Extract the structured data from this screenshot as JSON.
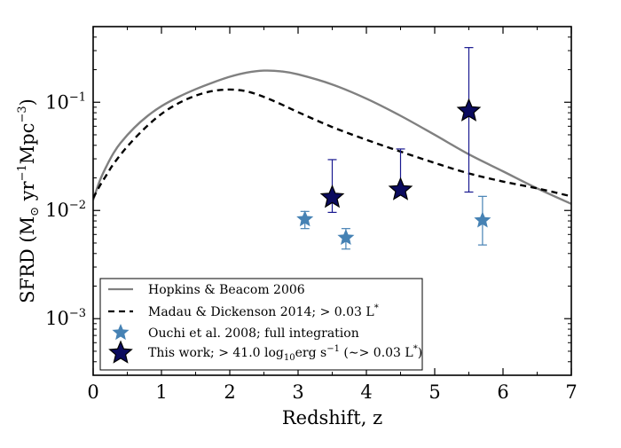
{
  "chart_data": {
    "type": "line",
    "title": "",
    "xlabel": "Redshift, z",
    "ylabel": "SFRD (M⊙ yr⁻¹Mpc⁻³)",
    "ylabel_parts": {
      "prefix": "SFRD (M",
      "sun": "⊙",
      "yr": " yr",
      "exp1": "−1",
      "mpc": "Mpc",
      "exp2": "−3",
      "suffix": ")"
    },
    "xlim": [
      0,
      7
    ],
    "ylim": [
      0.0003,
      0.5
    ],
    "yscale": "log",
    "legend_position": "lower-left",
    "x_ticks": [
      {
        "value": 0,
        "label": "0"
      },
      {
        "value": 1,
        "label": "1"
      },
      {
        "value": 2,
        "label": "2"
      },
      {
        "value": 3,
        "label": "3"
      },
      {
        "value": 4,
        "label": "4"
      },
      {
        "value": 5,
        "label": "5"
      },
      {
        "value": 6,
        "label": "6"
      },
      {
        "value": 7,
        "label": "7"
      }
    ],
    "y_ticks": [
      {
        "value": 0.001,
        "base": "10",
        "exp": "−3"
      },
      {
        "value": 0.01,
        "base": "10",
        "exp": "−2"
      },
      {
        "value": 0.1,
        "base": "10",
        "exp": "−1"
      }
    ],
    "series": [
      {
        "name": "Hopkins & Beacom 2006",
        "legend_text": "Hopkins & Beacom 2006",
        "kind": "line",
        "color": "#808080",
        "dash": "solid",
        "x": [
          0,
          0.1,
          0.2,
          0.3,
          0.4,
          0.6,
          0.8,
          1.0,
          1.25,
          1.5,
          1.75,
          2.0,
          2.25,
          2.5,
          2.75,
          3.0,
          3.5,
          4.0,
          4.5,
          5.0,
          5.5,
          6.0,
          6.5,
          7.0
        ],
        "y": [
          0.0125,
          0.019,
          0.026,
          0.034,
          0.042,
          0.058,
          0.075,
          0.092,
          0.112,
          0.132,
          0.152,
          0.172,
          0.188,
          0.196,
          0.193,
          0.181,
          0.146,
          0.108,
          0.075,
          0.05,
          0.033,
          0.023,
          0.016,
          0.0115
        ]
      },
      {
        "name": "Madau & Dickenson 2014",
        "legend_text": "Madau & Dickenson 2014; > 0.03 L*",
        "legend_parts": {
          "main": "Madau & Dickenson 2014; > 0.03 L",
          "sup": "*"
        },
        "kind": "line",
        "color": "#000000",
        "dash": "dashed",
        "x": [
          0,
          0.1,
          0.2,
          0.3,
          0.5,
          0.75,
          1.0,
          1.25,
          1.5,
          1.75,
          2.0,
          2.25,
          2.5,
          2.75,
          3.0,
          3.5,
          4.0,
          4.5,
          5.0,
          5.5,
          6.0,
          6.5,
          7.0
        ],
        "y": [
          0.013,
          0.017,
          0.0215,
          0.027,
          0.039,
          0.057,
          0.078,
          0.098,
          0.115,
          0.127,
          0.131,
          0.126,
          0.112,
          0.096,
          0.081,
          0.059,
          0.045,
          0.035,
          0.0275,
          0.022,
          0.0185,
          0.016,
          0.0135
        ]
      },
      {
        "name": "Ouchi et al. 2008",
        "legend_text": "Ouchi et al. 2008; full integration",
        "kind": "points",
        "marker": "star",
        "color": "#4682b4",
        "points": [
          {
            "x": 3.1,
            "y": 0.0083,
            "ylo": 0.0068,
            "yhi": 0.0098
          },
          {
            "x": 3.7,
            "y": 0.0056,
            "ylo": 0.0044,
            "yhi": 0.0068
          },
          {
            "x": 5.7,
            "y": 0.0081,
            "ylo": 0.0048,
            "yhi": 0.0135
          }
        ]
      },
      {
        "name": "This work",
        "legend_text": "This work; > 41.0 log10erg s−1 (∼> 0.03 L*)",
        "legend_parts": {
          "a": "This work; > 41.0 log",
          "sub": "10",
          "b": "erg s",
          "sup1": "−1",
          "c": " (∼> 0.03 L",
          "sup2": "*",
          "d": ")"
        },
        "kind": "points",
        "marker": "star",
        "color": "#0b0b5e",
        "edge_color": "#000000",
        "err_color": "#191990",
        "points": [
          {
            "x": 3.5,
            "y": 0.0132,
            "ylo": 0.0096,
            "yhi": 0.0295
          },
          {
            "x": 4.5,
            "y": 0.0155,
            "ylo": 0.0155,
            "yhi": 0.037
          },
          {
            "x": 5.5,
            "y": 0.083,
            "ylo": 0.0148,
            "yhi": 0.32
          }
        ]
      }
    ]
  }
}
